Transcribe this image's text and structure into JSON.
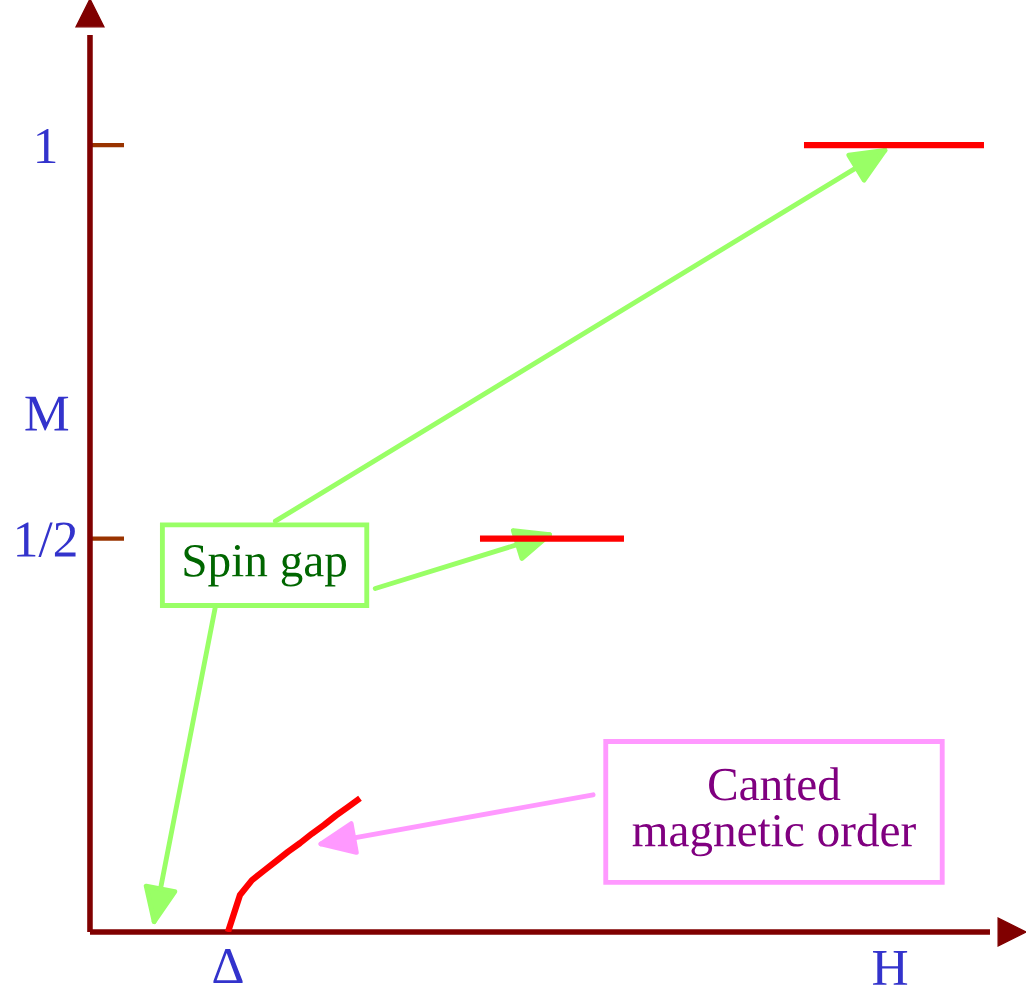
{
  "chart_data": {
    "type": "line",
    "xlabel": "H",
    "ylabel": "M",
    "categories": [
      null,
      null,
      null,
      null,
      null,
      null,
      null,
      null,
      null,
      null,
      null,
      "Δ",
      null,
      null,
      null,
      null,
      null,
      null,
      null,
      null,
      null,
      null,
      null,
      null,
      null,
      null,
      null,
      null,
      null,
      null,
      null,
      null,
      null,
      null,
      null,
      null,
      null,
      null,
      null,
      null,
      null,
      null,
      null,
      null,
      null,
      null,
      null,
      null,
      null,
      null,
      null,
      null,
      null,
      null,
      null,
      null,
      null,
      null,
      null,
      null,
      null,
      null,
      null,
      null,
      null,
      null,
      null,
      null,
      null,
      null,
      null,
      null,
      null,
      null,
      null
    ],
    "ylim": [
      0,
      1.14
    ],
    "yticks": [
      {
        "value": 0.5,
        "label": "1/2"
      },
      {
        "value": 1,
        "label": "1"
      }
    ],
    "series": [
      {
        "color": "#ff0000",
        "values": [
          null,
          null,
          null,
          null,
          null,
          null,
          null,
          null,
          null,
          null,
          null,
          0,
          0.047,
          0.066,
          0.078,
          0.09,
          0.102,
          0.113,
          0.125,
          0.136,
          0.148,
          0.159,
          0.17,
          null,
          null,
          null,
          null,
          null,
          null,
          null,
          null,
          null,
          null,
          null,
          null,
          null,
          null,
          null,
          null,
          null,
          null,
          null,
          null,
          null,
          null,
          null,
          null,
          null,
          null,
          null,
          null,
          null,
          null,
          null,
          null,
          null,
          null,
          null,
          null,
          null,
          null,
          null,
          null,
          null,
          null,
          null,
          null,
          null,
          null,
          null,
          null,
          null,
          null,
          null,
          null
        ]
      },
      {
        "color": "#ff0000",
        "values": [
          null,
          null,
          null,
          null,
          null,
          null,
          null,
          null,
          null,
          null,
          null,
          null,
          null,
          null,
          null,
          null,
          null,
          null,
          null,
          null,
          null,
          null,
          null,
          null,
          null,
          null,
          null,
          null,
          null,
          null,
          null,
          null,
          0.5,
          0.5,
          0.5,
          0.5,
          0.5,
          0.5,
          0.5,
          0.5,
          0.5,
          0.5,
          0.5,
          0.5,
          0.5,
          null,
          null,
          null,
          null,
          null,
          null,
          null,
          null,
          null,
          null,
          null,
          null,
          null,
          null,
          null,
          null,
          null,
          null,
          null,
          null,
          null,
          null,
          null,
          null,
          null,
          null,
          null,
          null,
          null,
          null
        ]
      },
      {
        "color": "#ff0000",
        "values": [
          null,
          null,
          null,
          null,
          null,
          null,
          null,
          null,
          null,
          null,
          null,
          null,
          null,
          null,
          null,
          null,
          null,
          null,
          null,
          null,
          null,
          null,
          null,
          null,
          null,
          null,
          null,
          null,
          null,
          null,
          null,
          null,
          null,
          null,
          null,
          null,
          null,
          null,
          null,
          null,
          null,
          null,
          null,
          null,
          null,
          null,
          null,
          null,
          null,
          null,
          null,
          null,
          null,
          null,
          null,
          null,
          null,
          null,
          null,
          1,
          1,
          1,
          1,
          1,
          1,
          1,
          1,
          1,
          1,
          1,
          1,
          1,
          1,
          1,
          1
        ]
      }
    ],
    "annotations": [
      "Spin gap",
      "Canted\nmagnetic order"
    ]
  }
}
